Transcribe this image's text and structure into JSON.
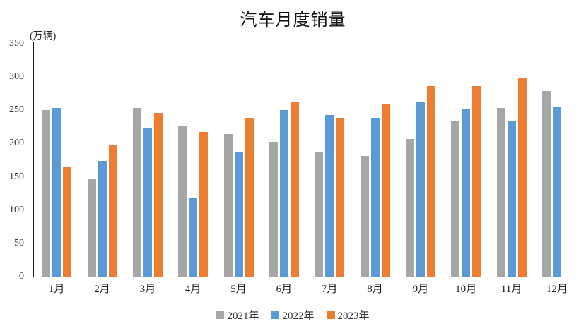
{
  "chart_data": {
    "type": "bar",
    "title": "汽车月度销量",
    "unit_label": "(万辆)",
    "categories": [
      "1月",
      "2月",
      "3月",
      "4月",
      "5月",
      "6月",
      "7月",
      "8月",
      "9月",
      "10月",
      "11月",
      "12月"
    ],
    "series": [
      {
        "name": "2021年",
        "color": "#A6A6A6",
        "values": [
          250,
          146,
          253,
          226,
          214,
          203,
          187,
          181,
          207,
          234,
          253,
          279
        ]
      },
      {
        "name": "2022年",
        "color": "#5B9BD5",
        "values": [
          254,
          174,
          224,
          119,
          187,
          250,
          243,
          239,
          262,
          251,
          234,
          256
        ]
      },
      {
        "name": "2023年",
        "color": "#ED7D31",
        "values": [
          165,
          198,
          246,
          217,
          239,
          263,
          239,
          259,
          286,
          286,
          298,
          null
        ]
      }
    ],
    "ylim": [
      0,
      350
    ],
    "yticks": [
      0,
      50,
      100,
      150,
      200,
      250,
      300,
      350
    ],
    "grid": false,
    "legend_position": "bottom"
  }
}
